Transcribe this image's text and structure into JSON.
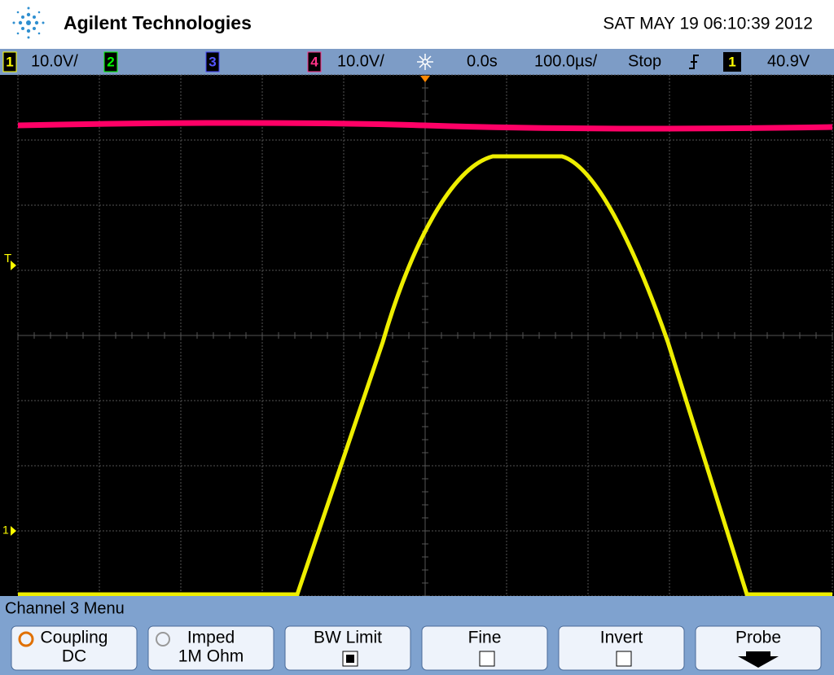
{
  "header": {
    "brand": "Agilent Technologies",
    "datetime": "SAT MAY 19 06:10:39 2012"
  },
  "status_bar": {
    "ch1": "1",
    "ch1_scale": "10.0V/",
    "ch2": "2",
    "ch3": "3",
    "ch4": "4",
    "ch4_scale": "10.0V/",
    "delay": "0.0s",
    "timebase": "100.0µs/",
    "run_state": "Stop",
    "trigger_source": "1",
    "trigger_level": "40.9V"
  },
  "markers": {
    "trigger": "T",
    "ground": "1"
  },
  "menu": {
    "title": "Channel 3  Menu",
    "buttons": [
      {
        "label": "Coupling",
        "value": "DC"
      },
      {
        "label": "Imped",
        "value": "1M Ohm"
      },
      {
        "label": "BW Limit",
        "checked": true
      },
      {
        "label": "Fine",
        "checked": false
      },
      {
        "label": "Invert",
        "checked": false
      },
      {
        "label": "Probe"
      }
    ]
  }
}
